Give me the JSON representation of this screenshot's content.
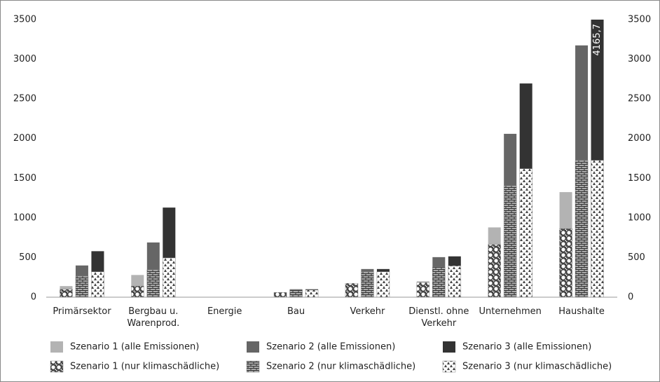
{
  "chart_data": {
    "type": "bar",
    "categories": [
      "Primärsektor",
      "Bergbau u.\nWarenprod.",
      "Energie",
      "Bau",
      "Verkehr",
      "Dienstl. ohne\nVerkehr",
      "Unternehmen",
      "Haushalte"
    ],
    "series": [
      {
        "name": "Szenario 1 (alle Emissionen)",
        "color": "#b3b3b3",
        "values": [
          140,
          280,
          0,
          60,
          175,
          200,
          880,
          1325
        ]
      },
      {
        "name": "Szenario 2 (alle Emissionen)",
        "color": "#666666",
        "values": [
          400,
          690,
          0,
          100,
          355,
          505,
          2060,
          3175
        ]
      },
      {
        "name": "Szenario 3 (alle Emissionen)",
        "color": "#333333",
        "values": [
          580,
          1130,
          0,
          100,
          355,
          515,
          2695,
          4165.7
        ],
        "value_labels": [
          null,
          null,
          null,
          null,
          null,
          null,
          null,
          "4165,7"
        ]
      },
      {
        "name": "Szenario 1 (nur klimaschädliche)",
        "color": "#444444",
        "pattern": "hexagon",
        "values": [
          100,
          140,
          0,
          60,
          175,
          185,
          665,
          865
        ]
      },
      {
        "name": "Szenario 2 (nur klimaschädliche)",
        "color": "#999999",
        "pattern": "brick",
        "values": [
          265,
          345,
          0,
          90,
          320,
          380,
          1405,
          1725
        ]
      },
      {
        "name": "Szenario 3 (nur klimaschädliche)",
        "color": "#ffffff",
        "pattern": "star",
        "values": [
          320,
          495,
          0,
          90,
          320,
          395,
          1620,
          1725
        ]
      }
    ],
    "ylim": [
      0,
      3500
    ],
    "yticks": [
      0,
      500,
      1000,
      1500,
      2000,
      2500,
      3000,
      3500
    ],
    "y2lim": [
      0,
      3500
    ],
    "y2ticks": [
      0,
      500,
      1000,
      1500,
      2000,
      2500,
      3000,
      3500
    ],
    "grid": false,
    "legend": "bottom"
  }
}
